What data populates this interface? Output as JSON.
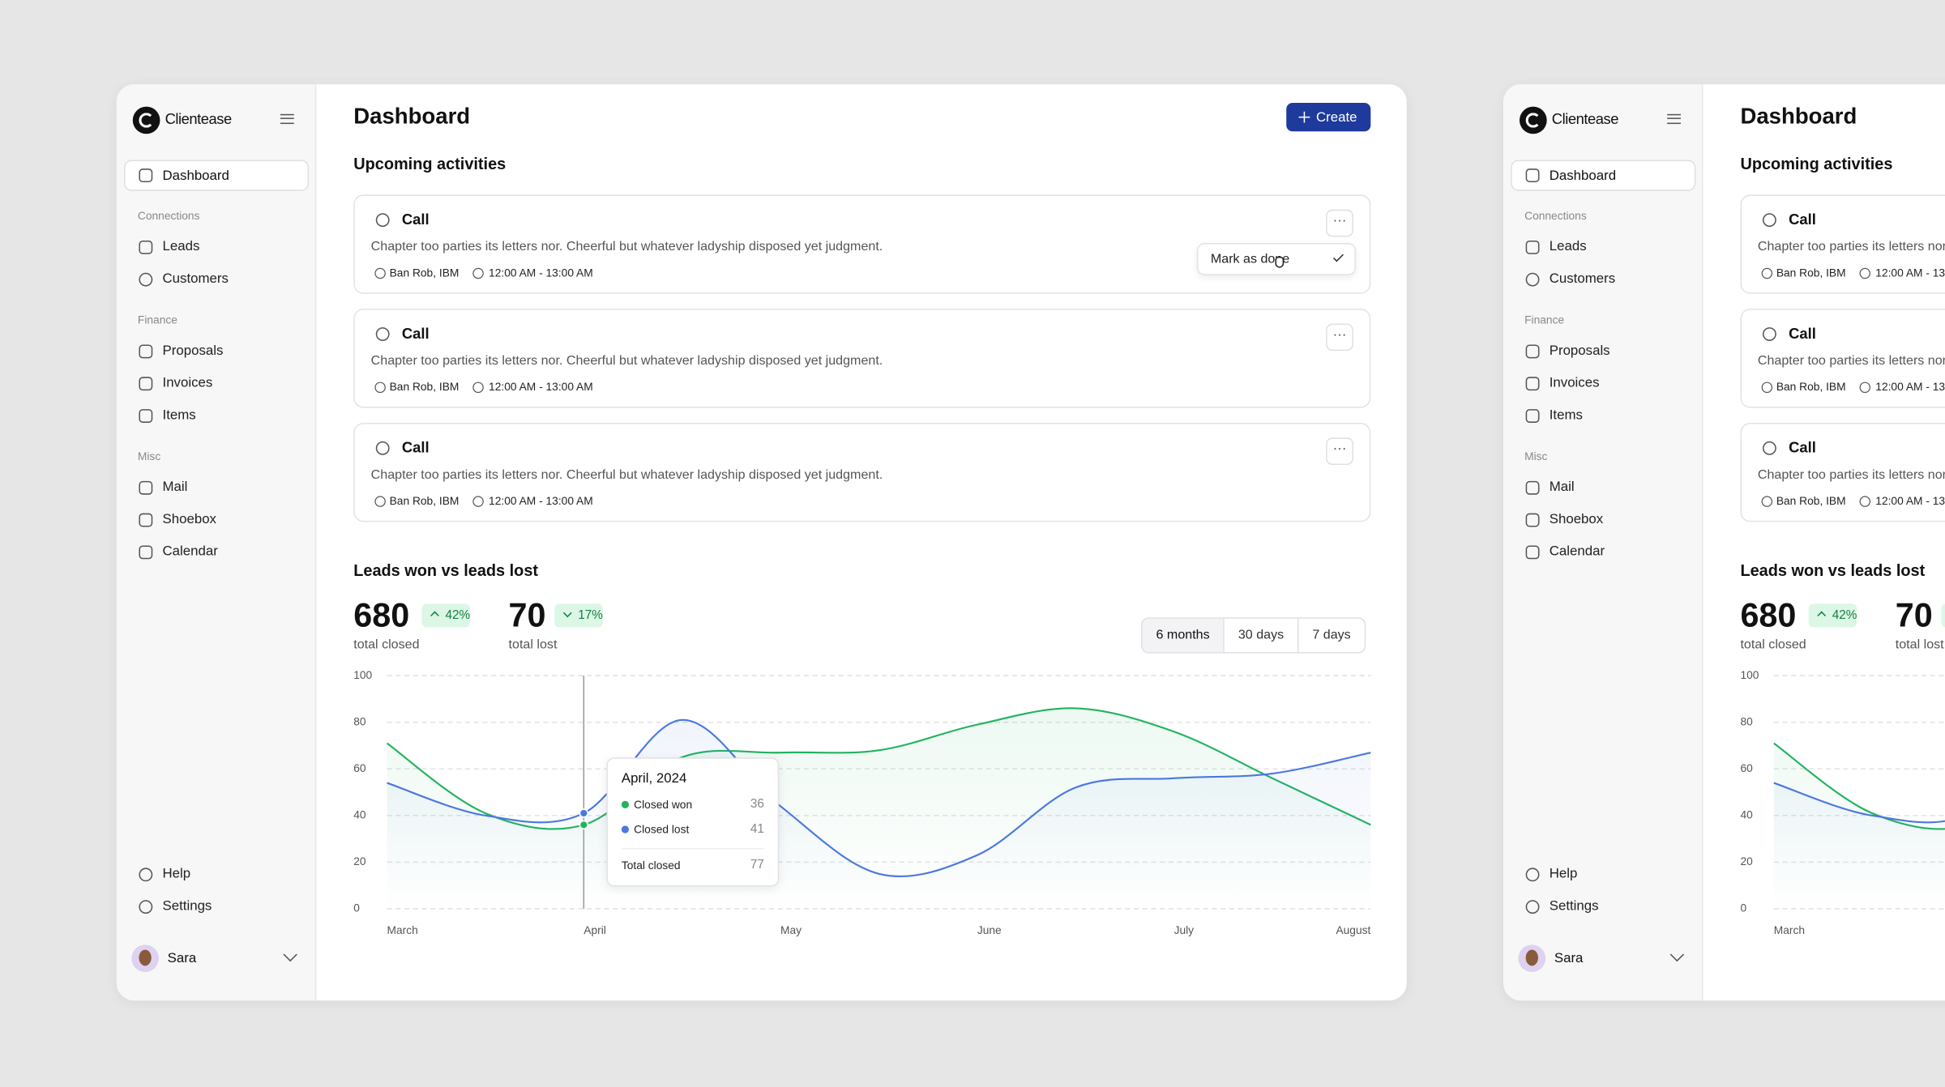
{
  "sidebar": {
    "brand": "Clientease",
    "home": "Dashboard",
    "sections": [
      {
        "title": "Connections",
        "items": [
          "Leads",
          "Customers"
        ]
      },
      {
        "title": "Finance",
        "items": [
          "Proposals",
          "Invoices",
          "Items"
        ]
      },
      {
        "title": "Misc",
        "items": [
          "Mail",
          "Shoebox",
          "Calendar"
        ]
      }
    ],
    "bottom": [
      "Help",
      "Settings"
    ],
    "user": "Sara"
  },
  "header": {
    "title": "Dashboard",
    "button": "Create"
  },
  "activities": {
    "title": "Upcoming activities",
    "menu": "Mark as done",
    "items": [
      {
        "type": "Call",
        "description": "Chapter too parties its letters nor. Cheerful but whatever ladyship disposed yet judgment.",
        "person": "Ban Rob, IBM",
        "time": "12:00 AM - 13:00 AM"
      },
      {
        "type": "Call",
        "description": "Chapter too parties its letters nor. Cheerful but whatever ladyship disposed yet judgment.",
        "person": "Ban Rob, IBM",
        "time": "12:00 AM - 13:00 AM"
      },
      {
        "type": "Call",
        "description": "Chapter too parties its letters nor. Cheerful but whatever ladyship disposed yet judgment.",
        "person": "Ban Rob, IBM",
        "time": "12:00 AM - 13:00 AM"
      }
    ]
  },
  "leads": {
    "title": "Leads won vs leads lost",
    "stats": [
      {
        "value": 680,
        "change": "42%",
        "direction": "up",
        "label": "total closed"
      },
      {
        "value": 70,
        "change": "17%",
        "direction": "down",
        "label": "total lost"
      }
    ],
    "ranges": [
      "6 months",
      "30 days",
      "7 days"
    ],
    "selected_range": "6 months"
  },
  "chart_data": {
    "type": "line",
    "categories": [
      "March",
      null,
      "April",
      null,
      "May",
      null,
      "June",
      null,
      "July",
      null,
      "August"
    ],
    "series": [
      {
        "name": "Closed won",
        "color": "#22b35e",
        "values": [
          71,
          41,
          36,
          65,
          67,
          68,
          79,
          86,
          76,
          56,
          36
        ]
      },
      {
        "name": "Closed lost",
        "color": "#4a78e0",
        "values": [
          54,
          40,
          41,
          81,
          44,
          15,
          23,
          52,
          56,
          58,
          67
        ]
      }
    ],
    "ylim": [
      0,
      100
    ],
    "yticks": [
      0,
      20,
      40,
      60,
      80,
      100
    ],
    "grid": true,
    "tooltip": {
      "title": "April, 2024",
      "total_label": "Total closed",
      "total": 77
    }
  }
}
